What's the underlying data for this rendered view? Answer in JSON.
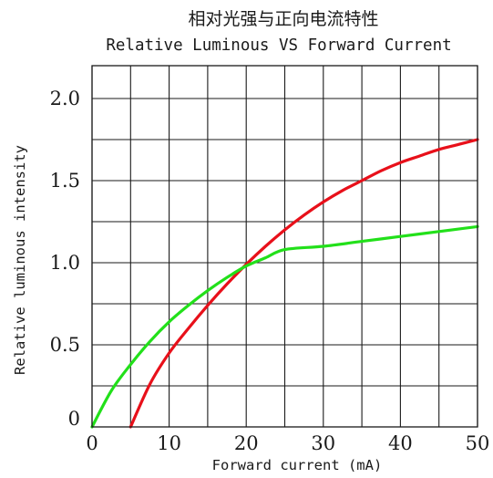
{
  "chart_data": {
    "type": "line",
    "title": "相对光强与正向电流特性",
    "subtitle": "Relative Luminous VS Forward Current",
    "xlabel": "Forward current (mA)",
    "ylabel": "Relative luminous intensity",
    "xlim": [
      0,
      50
    ],
    "ylim": [
      0,
      2.2
    ],
    "x_grid_step": 5,
    "y_grid_step": 0.25,
    "grid": true,
    "x_ticks": [
      0,
      10,
      20,
      30,
      40,
      50
    ],
    "x_tick_labels": [
      "0",
      "10",
      "20",
      "30",
      "40",
      "50"
    ],
    "y_ticks": [
      0,
      0.5,
      1.0,
      1.5,
      2.0
    ],
    "y_tick_labels": [
      "0",
      "0.5",
      "1.0",
      "1.5",
      "2.0"
    ],
    "series": [
      {
        "color": "#e8101a",
        "x": [
          5,
          7.5,
          10,
          12.5,
          15,
          17.5,
          20,
          22.5,
          25,
          27.5,
          30,
          32.5,
          35,
          37.5,
          40,
          42.5,
          45,
          47.5,
          50
        ],
        "y": [
          0.0,
          0.26,
          0.45,
          0.6,
          0.74,
          0.87,
          0.99,
          1.1,
          1.2,
          1.29,
          1.37,
          1.44,
          1.5,
          1.56,
          1.61,
          1.65,
          1.69,
          1.72,
          1.75
        ]
      },
      {
        "color": "#22e01a",
        "x": [
          0,
          2.5,
          5,
          7.5,
          10,
          12.5,
          15,
          17.5,
          20,
          22.5,
          25,
          30,
          35,
          40,
          45,
          50
        ],
        "y": [
          0.0,
          0.22,
          0.38,
          0.52,
          0.64,
          0.74,
          0.83,
          0.91,
          0.98,
          1.03,
          1.08,
          1.1,
          1.13,
          1.16,
          1.19,
          1.22
        ]
      }
    ]
  }
}
